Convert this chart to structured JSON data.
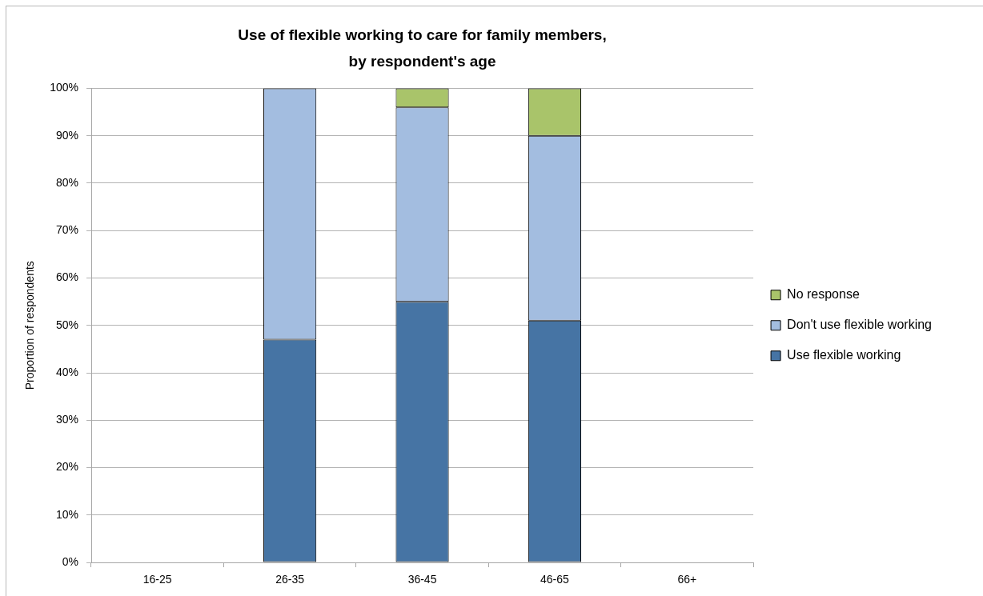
{
  "chart_data": {
    "type": "bar",
    "title": "Use of flexible working to care for family members, by respondent's age",
    "ylabel": "Proportion of respondents",
    "categories": [
      "16-25",
      "26-35",
      "36-45",
      "46-65",
      "66+"
    ],
    "stacked": true,
    "series": [
      {
        "name": "Use flexible working",
        "color": "#4674a4",
        "values": [
          null,
          47,
          55,
          51,
          null
        ]
      },
      {
        "name": "Don't use flexible working",
        "color": "#a3bde0",
        "values": [
          null,
          53,
          41,
          39,
          null
        ]
      },
      {
        "name": "No response",
        "color": "#a9c46a",
        "values": [
          null,
          null,
          4,
          10,
          null
        ]
      }
    ],
    "ylim": [
      0,
      100
    ],
    "yticks": [
      {
        "value": 0,
        "label": "0%"
      },
      {
        "value": 10,
        "label": "10%"
      },
      {
        "value": 20,
        "label": "20%"
      },
      {
        "value": 30,
        "label": "30%"
      },
      {
        "value": 40,
        "label": "40%"
      },
      {
        "value": 50,
        "label": "50%"
      },
      {
        "value": 60,
        "label": "60%"
      },
      {
        "value": 70,
        "label": "70%"
      },
      {
        "value": 80,
        "label": "80%"
      },
      {
        "value": 90,
        "label": "90%"
      },
      {
        "value": 100,
        "label": "100%"
      }
    ],
    "grid": "y",
    "legend": "right"
  }
}
